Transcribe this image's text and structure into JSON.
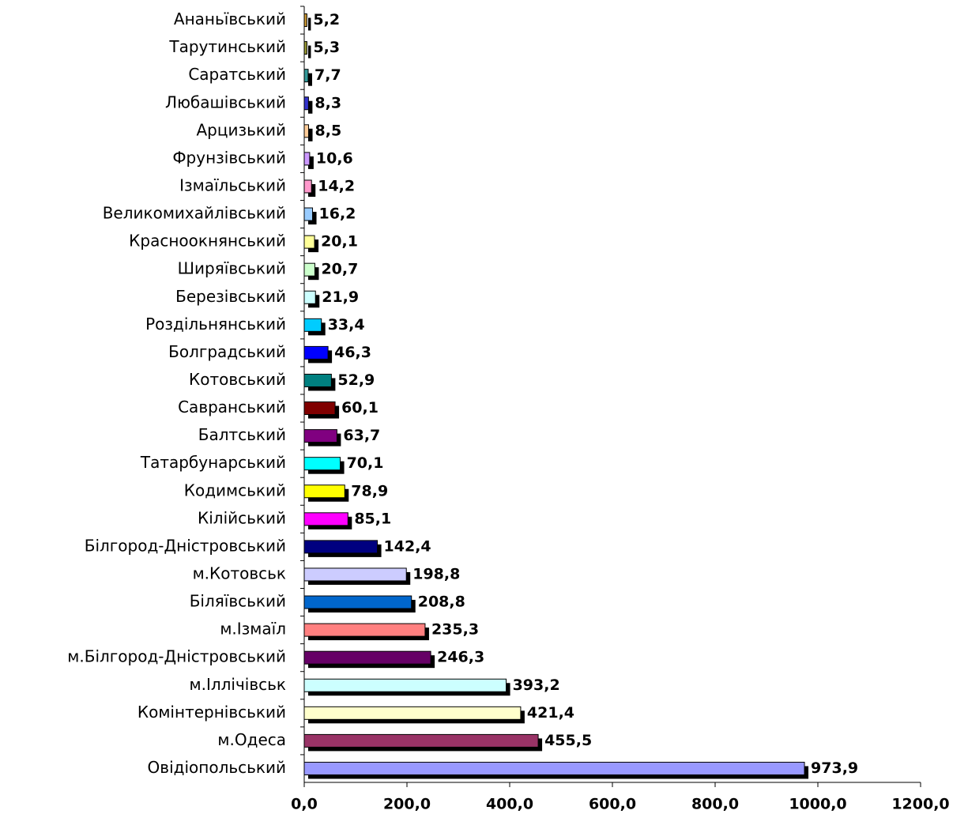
{
  "chart_data": {
    "type": "hbar",
    "categories": [
      "Ананьївський",
      "Тарутинський",
      "Саратський",
      "Любашівський",
      "Арцизький",
      "Фрунзівський",
      "Ізмаїльський",
      "Великомихайлівський",
      "Красноокнянський",
      "Ширяївський",
      "Березівський",
      "Роздільнянський",
      "Болградський",
      "Котовський",
      "Савранський",
      "Балтський",
      "Татарбунарський",
      "Кодимський",
      "Кілійський",
      "Білгород-Дністровський",
      "м.Котовськ",
      "Біляївський",
      "м.Ізмаїл",
      "м.Білгород-Дністровський",
      "м.Іллічівськ",
      "Комінтернівський",
      "м.Одеса",
      "Овідіопольський"
    ],
    "values": [
      5.2,
      5.3,
      7.7,
      8.3,
      8.5,
      10.6,
      14.2,
      16.2,
      20.1,
      20.7,
      21.9,
      33.4,
      46.3,
      52.9,
      60.1,
      63.7,
      70.1,
      78.9,
      85.1,
      142.4,
      198.8,
      208.8,
      235.3,
      246.3,
      393.2,
      421.4,
      455.5,
      973.9
    ],
    "value_labels": [
      "5,2",
      "5,3",
      "7,7",
      "8,3",
      "8,5",
      "10,6",
      "14,2",
      "16,2",
      "20,1",
      "20,7",
      "21,9",
      "33,4",
      "46,3",
      "52,9",
      "60,1",
      "63,7",
      "70,1",
      "78,9",
      "85,1",
      "142,4",
      "198,8",
      "208,8",
      "235,3",
      "246,3",
      "393,2",
      "421,4",
      "455,5",
      "973,9"
    ],
    "colors": [
      "#cc9933",
      "#999933",
      "#339999",
      "#3333cc",
      "#ffcc99",
      "#cc99ff",
      "#ff99cc",
      "#99ccff",
      "#ffff99",
      "#ccffcc",
      "#ccffff",
      "#00ccff",
      "#0000ff",
      "#008080",
      "#800000",
      "#800080",
      "#00ffff",
      "#ffff00",
      "#ff00ff",
      "#000080",
      "#ccccff",
      "#0066cc",
      "#ff8080",
      "#660066",
      "#ccffff",
      "#ffffcc",
      "#993366",
      "#9999ff"
    ],
    "xlim": [
      0,
      1200
    ],
    "xticks": [
      {
        "value": 0,
        "label": "0,0"
      },
      {
        "value": 200,
        "label": "200,0"
      },
      {
        "value": 400,
        "label": "400,0"
      },
      {
        "value": 600,
        "label": "600,0"
      },
      {
        "value": 800,
        "label": "800,0"
      },
      {
        "value": 1000,
        "label": "1000,0"
      },
      {
        "value": 1200,
        "label": "1200,0"
      }
    ]
  }
}
